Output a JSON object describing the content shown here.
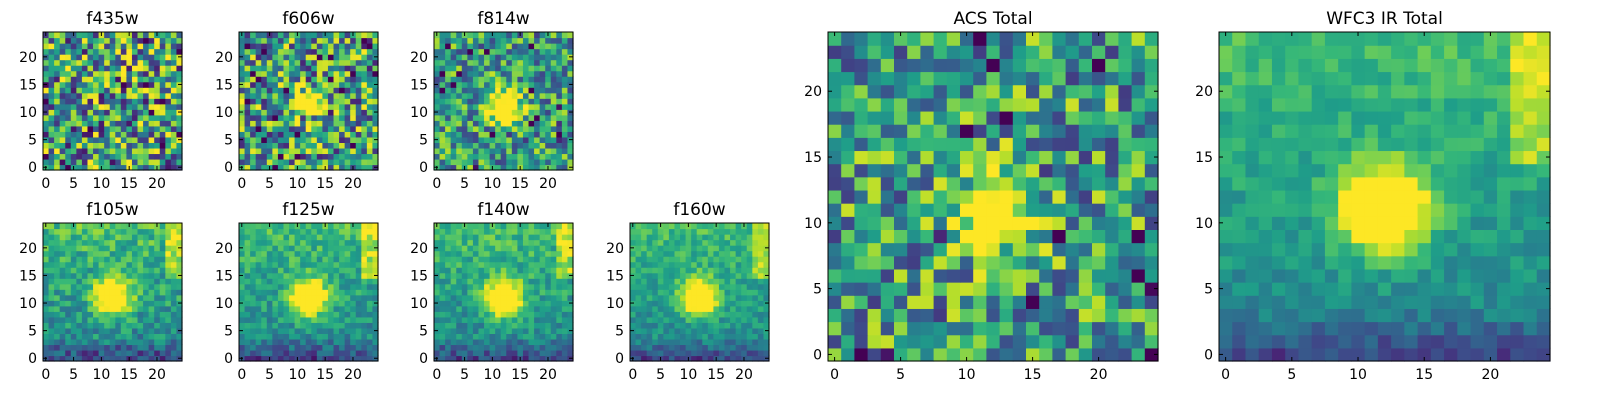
{
  "colormap": "viridis",
  "chart_data": [
    {
      "type": "heatmap",
      "title": "f435w",
      "x_ticks": [
        0,
        5,
        10,
        15,
        20
      ],
      "y_ticks": [
        0,
        5,
        10,
        15,
        20
      ],
      "grid": "25x25",
      "peak": {
        "x": 12,
        "y": 11
      },
      "blob_strength": 0.0,
      "noise_level": 1.0,
      "ir_gradient": false
    },
    {
      "type": "heatmap",
      "title": "f606w",
      "x_ticks": [
        0,
        5,
        10,
        15,
        20
      ],
      "y_ticks": [
        0,
        5,
        10,
        15,
        20
      ],
      "grid": "25x25",
      "peak": {
        "x": 12,
        "y": 11
      },
      "blob_strength": 0.7,
      "noise_level": 0.9,
      "ir_gradient": false
    },
    {
      "type": "heatmap",
      "title": "f814w",
      "x_ticks": [
        0,
        5,
        10,
        15,
        20
      ],
      "y_ticks": [
        0,
        5,
        10,
        15,
        20
      ],
      "grid": "25x25",
      "peak": {
        "x": 12,
        "y": 11
      },
      "blob_strength": 0.85,
      "noise_level": 0.7,
      "ir_gradient": false
    },
    {
      "type": "heatmap",
      "title": "f105w",
      "x_ticks": [
        0,
        5,
        10,
        15,
        20
      ],
      "y_ticks": [
        0,
        5,
        10,
        15,
        20
      ],
      "grid": "25x25",
      "peak": {
        "x": 12,
        "y": 11
      },
      "blob_strength": 0.9,
      "noise_level": 0.35,
      "ir_gradient": true
    },
    {
      "type": "heatmap",
      "title": "f125w",
      "x_ticks": [
        0,
        5,
        10,
        15,
        20
      ],
      "y_ticks": [
        0,
        5,
        10,
        15,
        20
      ],
      "grid": "25x25",
      "peak": {
        "x": 12,
        "y": 11
      },
      "blob_strength": 0.9,
      "noise_level": 0.3,
      "ir_gradient": true
    },
    {
      "type": "heatmap",
      "title": "f140w",
      "x_ticks": [
        0,
        5,
        10,
        15,
        20
      ],
      "y_ticks": [
        0,
        5,
        10,
        15,
        20
      ],
      "grid": "25x25",
      "peak": {
        "x": 12,
        "y": 11
      },
      "blob_strength": 0.9,
      "noise_level": 0.3,
      "ir_gradient": true
    },
    {
      "type": "heatmap",
      "title": "f160w",
      "x_ticks": [
        0,
        5,
        10,
        15,
        20
      ],
      "y_ticks": [
        0,
        5,
        10,
        15,
        20
      ],
      "grid": "25x25",
      "peak": {
        "x": 12,
        "y": 11
      },
      "blob_strength": 0.9,
      "noise_level": 0.25,
      "ir_gradient": true
    },
    {
      "type": "heatmap",
      "title": "ACS Total",
      "x_ticks": [
        0,
        5,
        10,
        15,
        20
      ],
      "y_ticks": [
        0,
        5,
        10,
        15,
        20
      ],
      "grid": "25x25",
      "peak": {
        "x": 12,
        "y": 11
      },
      "blob_strength": 0.8,
      "noise_level": 0.75,
      "ir_gradient": false
    },
    {
      "type": "heatmap",
      "title": "WFC3 IR Total",
      "x_ticks": [
        0,
        5,
        10,
        15,
        20
      ],
      "y_ticks": [
        0,
        5,
        10,
        15,
        20
      ],
      "grid": "25x25",
      "peak": {
        "x": 12,
        "y": 11
      },
      "blob_strength": 0.95,
      "noise_level": 0.2,
      "ir_gradient": true
    }
  ]
}
